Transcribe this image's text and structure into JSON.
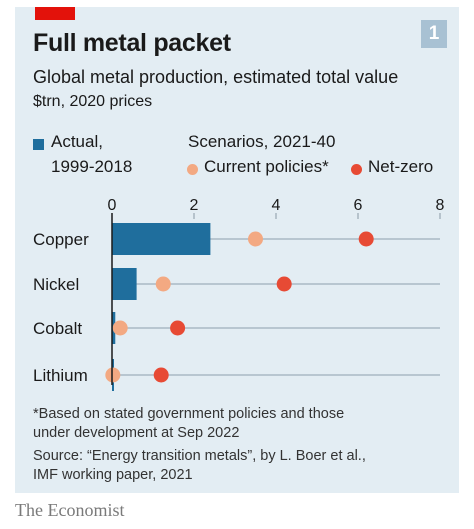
{
  "badge": "1",
  "title": "Full metal packet",
  "subtitle": "Global metal production, estimated total value",
  "units": "$trn, 2020 prices",
  "legend": {
    "actual_line1": "Actual,",
    "actual_line2": "1999-2018",
    "scenarios": "Scenarios, 2021-40",
    "current": "Current policies*",
    "netzero": "Net-zero"
  },
  "colors": {
    "actual": "#1f6e9d",
    "current": "#f3a982",
    "netzero": "#e74a34",
    "brand_red": "#e3120b",
    "panel": "#e3edf3"
  },
  "chart_data": {
    "type": "bar",
    "categories": [
      "Copper",
      "Nickel",
      "Cobalt",
      "Lithium"
    ],
    "series": [
      {
        "name": "Actual, 1999-2018",
        "kind": "bar",
        "values": [
          2.4,
          0.6,
          0.08,
          0.03
        ]
      },
      {
        "name": "Current policies*",
        "kind": "dot",
        "values": [
          3.5,
          1.25,
          0.2,
          0.02
        ]
      },
      {
        "name": "Net-zero",
        "kind": "dot",
        "values": [
          6.2,
          4.2,
          1.6,
          1.2
        ]
      }
    ],
    "xlim": [
      0,
      8
    ],
    "xticks": [
      "0",
      "2",
      "4",
      "6",
      "8"
    ],
    "grid": true
  },
  "footnote_line1": "*Based on stated government policies and those",
  "footnote_line2": "under development at Sep 2022",
  "source_line1": "Source: “Energy transition metals”, by L. Boer et al.,",
  "source_line2": "IMF working paper, 2021",
  "brand": "The Economist"
}
